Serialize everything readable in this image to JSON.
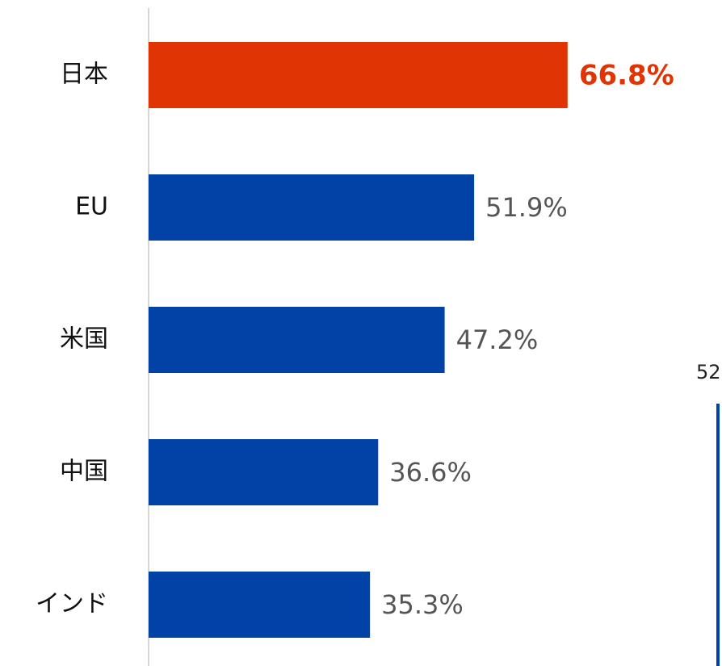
{
  "chart_data": {
    "type": "bar",
    "orientation": "horizontal",
    "categories": [
      "日本",
      "EU",
      "米国",
      "中国",
      "インド"
    ],
    "values": [
      66.8,
      51.9,
      47.2,
      36.6,
      35.3
    ],
    "value_labels": [
      "66.8%",
      "51.9%",
      "47.2%",
      "36.6%",
      "35.3%"
    ],
    "color": "#0042a5",
    "highlight_color": "#e03404",
    "highlight": [
      0
    ],
    "xlim": [
      0,
      90
    ],
    "annotation": "52"
  }
}
